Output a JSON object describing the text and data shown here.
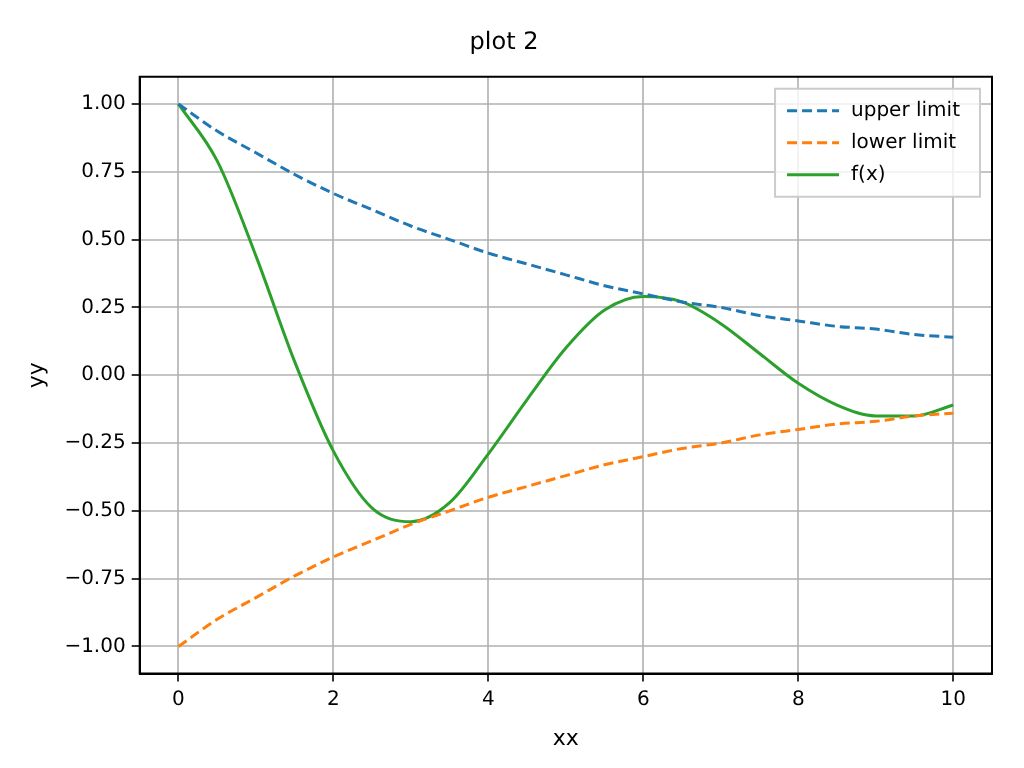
{
  "chart_data": {
    "type": "line",
    "title": "plot 2",
    "xlabel": "xx",
    "ylabel": "yy",
    "x": [
      0,
      0.5,
      1,
      1.5,
      2,
      2.5,
      3,
      3.5,
      4,
      4.5,
      5,
      5.5,
      6,
      6.5,
      7,
      7.5,
      8,
      8.5,
      9,
      9.5,
      10
    ],
    "series": [
      {
        "name": "upper limit",
        "color": "#1f77b4",
        "line_style": "dashed",
        "values": [
          1,
          0.9,
          0.82,
          0.74,
          0.67,
          0.61,
          0.55,
          0.5,
          0.45,
          0.41,
          0.37,
          0.33,
          0.3,
          0.27,
          0.25,
          0.22,
          0.2,
          0.18,
          0.17,
          0.15,
          0.14
        ]
      },
      {
        "name": "lower limit",
        "color": "#ff7f0e",
        "line_style": "dashed",
        "values": [
          -1,
          -0.9,
          -0.82,
          -0.74,
          -0.67,
          -0.61,
          -0.55,
          -0.5,
          -0.45,
          -0.41,
          -0.37,
          -0.33,
          -0.3,
          -0.27,
          -0.25,
          -0.22,
          -0.2,
          -0.18,
          -0.17,
          -0.15,
          -0.14
        ]
      },
      {
        "name": "f(x)",
        "color": "#2ca02c",
        "line_style": "solid",
        "values": [
          1,
          0.79,
          0.44,
          0.05,
          -0.28,
          -0.49,
          -0.54,
          -0.47,
          -0.29,
          -0.09,
          0.1,
          0.24,
          0.29,
          0.27,
          0.19,
          0.08,
          -0.03,
          -0.11,
          -0.15,
          -0.15,
          -0.11
        ]
      }
    ],
    "xlim": [
      -0.5,
      10.5
    ],
    "xticks": [
      0,
      2,
      4,
      6,
      8,
      10
    ],
    "ylim": [
      -1.1,
      1.1
    ],
    "yticks": [
      {
        "value": -1,
        "label": "−1.00"
      },
      {
        "value": -0.75,
        "label": "−0.75"
      },
      {
        "value": -0.5,
        "label": "−0.50"
      },
      {
        "value": -0.25,
        "label": "−0.25"
      },
      {
        "value": 0,
        "label": "0.00"
      },
      {
        "value": 0.25,
        "label": "0.25"
      },
      {
        "value": 0.5,
        "label": "0.50"
      },
      {
        "value": 0.75,
        "label": "0.75"
      },
      {
        "value": 1,
        "label": "1.00"
      }
    ],
    "grid": true,
    "legend": "top right",
    "marker": "none"
  }
}
